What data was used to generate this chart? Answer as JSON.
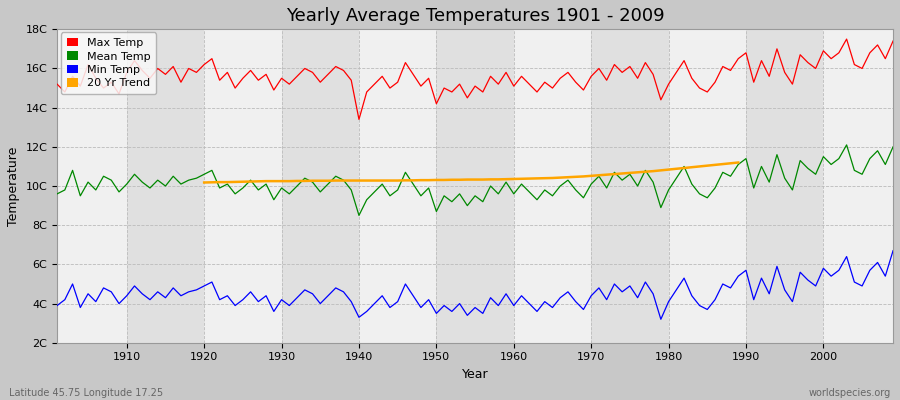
{
  "title": "Yearly Average Temperatures 1901 - 2009",
  "xlabel": "Year",
  "ylabel": "Temperature",
  "subtitle_left": "Latitude 45.75 Longitude 17.25",
  "subtitle_right": "worldspecies.org",
  "years": [
    1901,
    1902,
    1903,
    1904,
    1905,
    1906,
    1907,
    1908,
    1909,
    1910,
    1911,
    1912,
    1913,
    1914,
    1915,
    1916,
    1917,
    1918,
    1919,
    1920,
    1921,
    1922,
    1923,
    1924,
    1925,
    1926,
    1927,
    1928,
    1929,
    1930,
    1931,
    1932,
    1933,
    1934,
    1935,
    1936,
    1937,
    1938,
    1939,
    1940,
    1941,
    1942,
    1943,
    1944,
    1945,
    1946,
    1947,
    1948,
    1949,
    1950,
    1951,
    1952,
    1953,
    1954,
    1955,
    1956,
    1957,
    1958,
    1959,
    1960,
    1961,
    1962,
    1963,
    1964,
    1965,
    1966,
    1967,
    1968,
    1969,
    1970,
    1971,
    1972,
    1973,
    1974,
    1975,
    1976,
    1977,
    1978,
    1979,
    1980,
    1981,
    1982,
    1983,
    1984,
    1985,
    1986,
    1987,
    1988,
    1989,
    1990,
    1991,
    1992,
    1993,
    1994,
    1995,
    1996,
    1997,
    1998,
    1999,
    2000,
    2001,
    2002,
    2003,
    2004,
    2005,
    2006,
    2007,
    2008,
    2009
  ],
  "max_temp": [
    15.2,
    14.8,
    15.6,
    15.1,
    16.2,
    15.5,
    15.0,
    15.3,
    14.7,
    15.8,
    16.4,
    15.9,
    15.5,
    16.0,
    15.7,
    16.1,
    15.3,
    16.0,
    15.8,
    16.2,
    16.5,
    15.4,
    15.8,
    15.0,
    15.5,
    15.9,
    15.4,
    15.7,
    14.9,
    15.5,
    15.2,
    15.6,
    16.0,
    15.8,
    15.3,
    15.7,
    16.1,
    15.9,
    15.4,
    13.4,
    14.8,
    15.2,
    15.6,
    15.0,
    15.3,
    16.3,
    15.7,
    15.1,
    15.5,
    14.2,
    15.0,
    14.8,
    15.2,
    14.5,
    15.1,
    14.8,
    15.6,
    15.2,
    15.8,
    15.1,
    15.6,
    15.2,
    14.8,
    15.3,
    15.0,
    15.5,
    15.8,
    15.3,
    14.9,
    15.6,
    16.0,
    15.4,
    16.2,
    15.8,
    16.1,
    15.5,
    16.3,
    15.7,
    14.4,
    15.2,
    15.8,
    16.4,
    15.5,
    15.0,
    14.8,
    15.3,
    16.1,
    15.9,
    16.5,
    16.8,
    15.3,
    16.4,
    15.6,
    17.0,
    15.8,
    15.2,
    16.7,
    16.3,
    16.0,
    16.9,
    16.5,
    16.8,
    17.5,
    16.2,
    16.0,
    16.8,
    17.2,
    16.5,
    17.4
  ],
  "mean_temp": [
    9.6,
    9.8,
    10.8,
    9.5,
    10.2,
    9.8,
    10.5,
    10.3,
    9.7,
    10.1,
    10.6,
    10.2,
    9.9,
    10.3,
    10.0,
    10.5,
    10.1,
    10.3,
    10.4,
    10.6,
    10.8,
    9.9,
    10.1,
    9.6,
    9.9,
    10.3,
    9.8,
    10.1,
    9.3,
    9.9,
    9.6,
    10.0,
    10.4,
    10.2,
    9.7,
    10.1,
    10.5,
    10.3,
    9.8,
    8.5,
    9.3,
    9.7,
    10.1,
    9.5,
    9.8,
    10.7,
    10.1,
    9.5,
    9.9,
    8.7,
    9.5,
    9.2,
    9.6,
    9.0,
    9.5,
    9.2,
    10.0,
    9.6,
    10.2,
    9.6,
    10.1,
    9.7,
    9.3,
    9.8,
    9.5,
    10.0,
    10.3,
    9.8,
    9.4,
    10.1,
    10.5,
    9.9,
    10.7,
    10.3,
    10.6,
    10.0,
    10.8,
    10.2,
    8.9,
    9.8,
    10.4,
    11.0,
    10.1,
    9.6,
    9.4,
    9.9,
    10.7,
    10.5,
    11.1,
    11.4,
    9.9,
    11.0,
    10.2,
    11.6,
    10.4,
    9.8,
    11.3,
    10.9,
    10.6,
    11.5,
    11.1,
    11.4,
    12.1,
    10.8,
    10.6,
    11.4,
    11.8,
    11.1,
    12.0
  ],
  "min_temp": [
    3.9,
    4.2,
    5.0,
    3.8,
    4.5,
    4.1,
    4.8,
    4.6,
    4.0,
    4.4,
    4.9,
    4.5,
    4.2,
    4.6,
    4.3,
    4.8,
    4.4,
    4.6,
    4.7,
    4.9,
    5.1,
    4.2,
    4.4,
    3.9,
    4.2,
    4.6,
    4.1,
    4.4,
    3.6,
    4.2,
    3.9,
    4.3,
    4.7,
    4.5,
    4.0,
    4.4,
    4.8,
    4.6,
    4.1,
    3.3,
    3.6,
    4.0,
    4.4,
    3.8,
    4.1,
    5.0,
    4.4,
    3.8,
    4.2,
    3.5,
    3.9,
    3.6,
    4.0,
    3.4,
    3.8,
    3.5,
    4.3,
    3.9,
    4.5,
    3.9,
    4.4,
    4.0,
    3.6,
    4.1,
    3.8,
    4.3,
    4.6,
    4.1,
    3.7,
    4.4,
    4.8,
    4.2,
    5.0,
    4.6,
    4.9,
    4.3,
    5.1,
    4.5,
    3.2,
    4.1,
    4.7,
    5.3,
    4.4,
    3.9,
    3.7,
    4.2,
    5.0,
    4.8,
    5.4,
    5.7,
    4.2,
    5.3,
    4.5,
    5.9,
    4.7,
    4.1,
    5.6,
    5.2,
    4.9,
    5.8,
    5.4,
    5.7,
    6.4,
    5.1,
    4.9,
    5.7,
    6.1,
    5.4,
    6.7
  ],
  "trend_years": [
    1920,
    1921,
    1922,
    1923,
    1924,
    1925,
    1926,
    1927,
    1928,
    1929,
    1930,
    1931,
    1932,
    1933,
    1934,
    1935,
    1936,
    1937,
    1938,
    1939,
    1940,
    1941,
    1942,
    1943,
    1944,
    1945,
    1946,
    1947,
    1948,
    1949,
    1950,
    1951,
    1952,
    1953,
    1954,
    1955,
    1956,
    1957,
    1958,
    1959,
    1960,
    1961,
    1962,
    1963,
    1964,
    1965,
    1966,
    1967,
    1968,
    1969,
    1970,
    1971,
    1972,
    1973,
    1974,
    1975,
    1976,
    1977,
    1978,
    1979,
    1980,
    1981,
    1982,
    1983,
    1984,
    1985,
    1986,
    1987,
    1988,
    1989
  ],
  "trend": [
    10.18,
    10.19,
    10.2,
    10.2,
    10.21,
    10.22,
    10.23,
    10.24,
    10.25,
    10.25,
    10.25,
    10.25,
    10.26,
    10.26,
    10.27,
    10.27,
    10.27,
    10.28,
    10.28,
    10.28,
    10.28,
    10.28,
    10.28,
    10.28,
    10.28,
    10.28,
    10.29,
    10.29,
    10.3,
    10.3,
    10.31,
    10.31,
    10.32,
    10.32,
    10.33,
    10.33,
    10.33,
    10.34,
    10.34,
    10.35,
    10.36,
    10.37,
    10.38,
    10.39,
    10.4,
    10.41,
    10.43,
    10.45,
    10.47,
    10.49,
    10.52,
    10.55,
    10.58,
    10.61,
    10.64,
    10.67,
    10.7,
    10.73,
    10.76,
    10.8,
    10.84,
    10.88,
    10.92,
    10.96,
    11.0,
    11.04,
    11.08,
    11.12,
    11.16,
    11.2
  ],
  "max_color": "#ff0000",
  "mean_color": "#008800",
  "min_color": "#0000ff",
  "trend_color": "#ffa500",
  "fig_bg_color": "#c8c8c8",
  "plot_bg_color": "#e8e8e8",
  "stripe_color_light": "#f0f0f0",
  "stripe_color_dark": "#e0e0e0",
  "grid_color": "#bbbbbb",
  "ylim": [
    2,
    18
  ],
  "yticks": [
    2,
    4,
    6,
    8,
    10,
    12,
    14,
    16,
    18
  ],
  "ytick_labels": [
    "2C",
    "4C",
    "6C",
    "8C",
    "10C",
    "12C",
    "14C",
    "16C",
    "18C"
  ],
  "xticks": [
    1910,
    1920,
    1930,
    1940,
    1950,
    1960,
    1970,
    1980,
    1990,
    2000
  ],
  "xlim_left": 1901,
  "xlim_right": 2009,
  "title_fontsize": 13,
  "axis_fontsize": 9,
  "tick_fontsize": 8,
  "legend_fontsize": 8,
  "linewidth": 0.9
}
